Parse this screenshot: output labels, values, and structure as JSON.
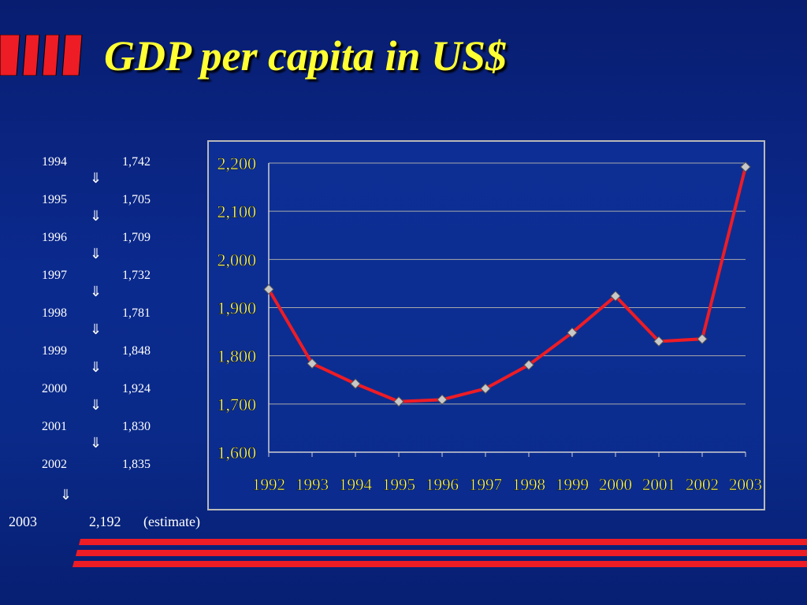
{
  "slide": {
    "title": "GDP per capita in US$",
    "colors": {
      "background": "#0a2a8a",
      "title": "#ffff33",
      "accent": "#ee1c25",
      "axis_label": "#ffff66"
    }
  },
  "table": {
    "rows": [
      {
        "year": "1994",
        "value": "1,742"
      },
      {
        "year": "1995",
        "value": "1,705"
      },
      {
        "year": "1996",
        "value": "1,709"
      },
      {
        "year": "1997",
        "value": "1,732"
      },
      {
        "year": "1998",
        "value": "1,781"
      },
      {
        "year": "1999",
        "value": "1,848"
      },
      {
        "year": "2000",
        "value": "1,924"
      },
      {
        "year": "2001",
        "value": "1,830"
      },
      {
        "year": "2002",
        "value": "1,835"
      }
    ],
    "arrow": "⇓",
    "last": {
      "year": "2003",
      "value": "2,192",
      "note": "(estimate)"
    }
  },
  "chart_data": {
    "type": "line",
    "x": [
      "1992",
      "1993",
      "1994",
      "1995",
      "1996",
      "1997",
      "1998",
      "1999",
      "2000",
      "2001",
      "2002",
      "2003"
    ],
    "series": [
      {
        "values": [
          1938,
          1784,
          1742,
          1705,
          1709,
          1732,
          1781,
          1848,
          1924,
          1830,
          1835,
          2192
        ],
        "color": "#ee1c25"
      }
    ],
    "ylim": [
      1600,
      2200
    ],
    "yticks": [
      1600,
      1700,
      1800,
      1900,
      2000,
      2100,
      2200
    ],
    "ytick_labels": [
      "1,600",
      "1,700",
      "1,800",
      "1,900",
      "2,000",
      "2,100",
      "2,200"
    ],
    "grid": true,
    "marker": "diamond",
    "title": "",
    "xlabel": "",
    "ylabel": ""
  }
}
